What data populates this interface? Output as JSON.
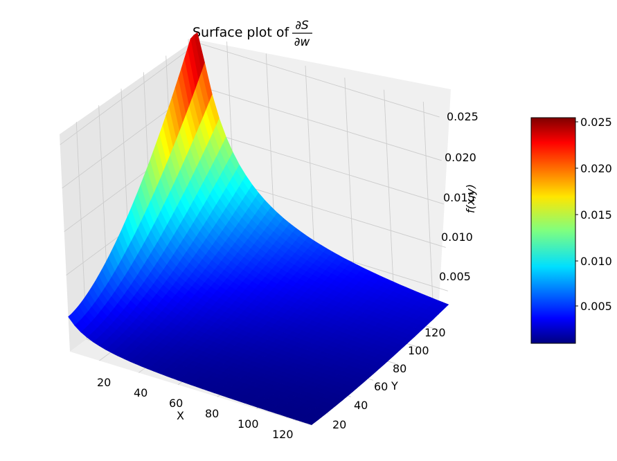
{
  "chart_data": {
    "type": "surface",
    "title_prefix": "Surface plot of ",
    "title_numerator": "∂S",
    "title_denominator": "∂w",
    "xlabel": "X",
    "ylabel": "Y",
    "zlabel": "f(x,y)",
    "x_ticks": [
      "20",
      "40",
      "60",
      "80",
      "100",
      "120"
    ],
    "y_ticks": [
      "20",
      "40",
      "60",
      "80",
      "100",
      "120"
    ],
    "z_ticks": [
      "0.005",
      "0.010",
      "0.015",
      "0.020",
      "0.025"
    ],
    "colorbar_ticks": [
      "0.005",
      "0.010",
      "0.015",
      "0.020",
      "0.025"
    ],
    "colormap": "jet",
    "xlim": [
      5,
      128
    ],
    "ylim": [
      5,
      128
    ],
    "zlim": [
      0.0012,
      0.0262
    ],
    "surface_corners": {
      "x_min_y_min": 0.0046,
      "x_max_y_min": 0.0012,
      "x_min_y_max": 0.0255,
      "x_max_y_max": 0.0072
    },
    "grid": true
  }
}
